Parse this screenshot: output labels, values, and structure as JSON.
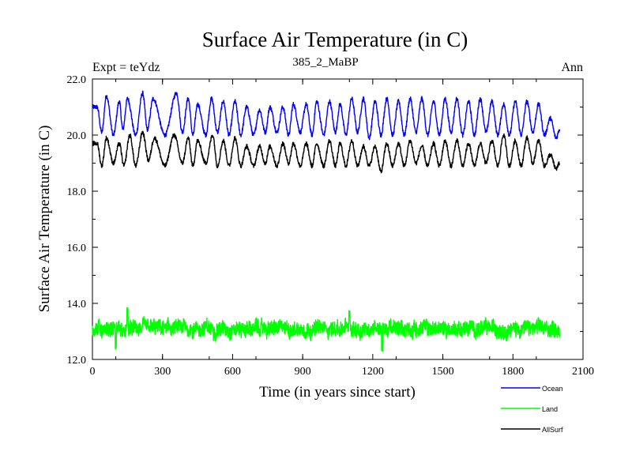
{
  "chart_data": {
    "type": "line",
    "title": "Surface Air Temperature (in C)",
    "subtitle_left": "Expt = teYdz",
    "subtitle_center": "385_2_MaBP",
    "subtitle_right": "Ann",
    "xlabel": "Time (in years since start)",
    "ylabel": "Surface Air Temperature (in C)",
    "xlim": [
      0,
      2100
    ],
    "ylim": [
      12.0,
      22.0
    ],
    "x_ticks": [
      0,
      300,
      600,
      900,
      1200,
      1500,
      1800,
      2100
    ],
    "x_tick_labels": [
      "0",
      "300",
      "600",
      "900",
      "1200",
      "1500",
      "1800",
      "2100"
    ],
    "y_ticks": [
      12.0,
      14.0,
      16.0,
      18.0,
      20.0,
      22.0
    ],
    "y_tick_labels": [
      "12.0",
      "14.0",
      "16.0",
      "18.0",
      "20.0",
      "22.0"
    ],
    "legend_position": "bottom-right, outside plot",
    "series": [
      {
        "name": "Ocean",
        "color": "#0000ff",
        "x_range": [
          0,
          2000
        ],
        "period_years": 100,
        "peaks": [
          [
            20,
            21.0
          ],
          [
            60,
            21.4
          ],
          [
            115,
            21.2
          ],
          [
            150,
            21.3
          ],
          [
            215,
            21.5
          ],
          [
            260,
            21.3
          ],
          [
            360,
            21.5
          ],
          [
            410,
            21.3
          ],
          [
            450,
            21.1
          ],
          [
            510,
            21.3
          ],
          [
            560,
            21.2
          ],
          [
            610,
            21.2
          ],
          [
            660,
            21.0
          ],
          [
            715,
            20.9
          ],
          [
            760,
            21.0
          ],
          [
            815,
            21.0
          ],
          [
            860,
            21.1
          ],
          [
            915,
            21.1
          ],
          [
            960,
            21.2
          ],
          [
            1015,
            21.2
          ],
          [
            1060,
            21.1
          ],
          [
            1110,
            21.3
          ],
          [
            1160,
            21.3
          ],
          [
            1210,
            21.2
          ],
          [
            1260,
            21.3
          ],
          [
            1310,
            21.2
          ],
          [
            1360,
            21.3
          ],
          [
            1410,
            21.3
          ],
          [
            1460,
            21.2
          ],
          [
            1510,
            21.3
          ],
          [
            1560,
            21.3
          ],
          [
            1610,
            21.2
          ],
          [
            1660,
            21.3
          ],
          [
            1710,
            21.2
          ],
          [
            1760,
            21.1
          ],
          [
            1810,
            21.2
          ],
          [
            1860,
            21.2
          ],
          [
            1910,
            21.1
          ],
          [
            1960,
            20.6
          ]
        ],
        "troughs": [
          [
            40,
            20.1
          ],
          [
            90,
            20.0
          ],
          [
            130,
            20.2
          ],
          [
            185,
            20.0
          ],
          [
            235,
            20.2
          ],
          [
            310,
            20.0
          ],
          [
            385,
            20.1
          ],
          [
            430,
            20.0
          ],
          [
            485,
            20.0
          ],
          [
            535,
            20.1
          ],
          [
            585,
            20.0
          ],
          [
            635,
            20.0
          ],
          [
            690,
            20.0
          ],
          [
            740,
            20.1
          ],
          [
            790,
            20.1
          ],
          [
            840,
            20.0
          ],
          [
            890,
            20.1
          ],
          [
            940,
            20.0
          ],
          [
            990,
            20.0
          ],
          [
            1040,
            20.1
          ],
          [
            1085,
            20.0
          ],
          [
            1135,
            20.1
          ],
          [
            1185,
            19.9
          ],
          [
            1235,
            20.0
          ],
          [
            1285,
            20.0
          ],
          [
            1335,
            20.0
          ],
          [
            1385,
            20.1
          ],
          [
            1435,
            20.0
          ],
          [
            1485,
            20.0
          ],
          [
            1535,
            20.1
          ],
          [
            1585,
            20.0
          ],
          [
            1635,
            20.0
          ],
          [
            1685,
            20.1
          ],
          [
            1735,
            20.0
          ],
          [
            1785,
            20.0
          ],
          [
            1835,
            20.0
          ],
          [
            1885,
            20.1
          ],
          [
            1935,
            20.0
          ],
          [
            1985,
            19.9
          ]
        ],
        "start_value": 21.0,
        "end_value": 20.2
      },
      {
        "name": "Land",
        "color": "#00ff00",
        "x_range": [
          0,
          2000
        ],
        "mean": 13.1,
        "typical_min": 12.5,
        "typical_max": 13.6,
        "extremes": [
          [
            100,
            12.4
          ],
          [
            150,
            13.8
          ],
          [
            1240,
            12.3
          ],
          [
            1100,
            13.7
          ]
        ],
        "start_value": 13.2,
        "end_value": 12.9
      },
      {
        "name": "AllSurf",
        "color": "#000000",
        "x_range": [
          0,
          2000
        ],
        "period_years": 100,
        "peaks": [
          [
            20,
            19.7
          ],
          [
            60,
            19.9
          ],
          [
            115,
            19.7
          ],
          [
            160,
            20.0
          ],
          [
            215,
            20.1
          ],
          [
            265,
            19.9
          ],
          [
            350,
            20.0
          ],
          [
            410,
            19.9
          ],
          [
            450,
            19.8
          ],
          [
            515,
            20.0
          ],
          [
            560,
            19.8
          ],
          [
            610,
            19.9
          ],
          [
            660,
            19.6
          ],
          [
            715,
            19.6
          ],
          [
            760,
            19.6
          ],
          [
            815,
            19.7
          ],
          [
            860,
            19.7
          ],
          [
            915,
            19.7
          ],
          [
            960,
            19.7
          ],
          [
            1015,
            19.8
          ],
          [
            1060,
            19.7
          ],
          [
            1110,
            19.8
          ],
          [
            1160,
            19.6
          ],
          [
            1210,
            19.6
          ],
          [
            1260,
            19.7
          ],
          [
            1310,
            19.7
          ],
          [
            1360,
            19.8
          ],
          [
            1410,
            19.6
          ],
          [
            1460,
            19.7
          ],
          [
            1510,
            19.8
          ],
          [
            1560,
            19.8
          ],
          [
            1610,
            19.7
          ],
          [
            1660,
            19.7
          ],
          [
            1710,
            19.8
          ],
          [
            1760,
            20.0
          ],
          [
            1810,
            19.8
          ],
          [
            1860,
            19.9
          ],
          [
            1910,
            19.8
          ],
          [
            1960,
            19.3
          ]
        ],
        "troughs": [
          [
            40,
            18.9
          ],
          [
            90,
            19.0
          ],
          [
            135,
            18.9
          ],
          [
            185,
            18.9
          ],
          [
            240,
            19.1
          ],
          [
            310,
            18.9
          ],
          [
            385,
            19.0
          ],
          [
            430,
            18.9
          ],
          [
            485,
            19.0
          ],
          [
            535,
            18.9
          ],
          [
            585,
            18.9
          ],
          [
            635,
            18.9
          ],
          [
            690,
            18.9
          ],
          [
            740,
            19.0
          ],
          [
            790,
            18.9
          ],
          [
            840,
            19.0
          ],
          [
            890,
            18.9
          ],
          [
            940,
            18.9
          ],
          [
            990,
            18.9
          ],
          [
            1040,
            18.9
          ],
          [
            1085,
            18.9
          ],
          [
            1135,
            18.9
          ],
          [
            1185,
            18.9
          ],
          [
            1235,
            18.7
          ],
          [
            1285,
            18.9
          ],
          [
            1335,
            18.9
          ],
          [
            1385,
            19.0
          ],
          [
            1435,
            18.9
          ],
          [
            1485,
            18.9
          ],
          [
            1535,
            18.9
          ],
          [
            1585,
            18.9
          ],
          [
            1635,
            18.9
          ],
          [
            1685,
            19.0
          ],
          [
            1735,
            18.9
          ],
          [
            1785,
            18.9
          ],
          [
            1835,
            18.9
          ],
          [
            1885,
            19.0
          ],
          [
            1935,
            18.9
          ],
          [
            1985,
            18.8
          ]
        ],
        "start_value": 19.7,
        "end_value": 19.0
      }
    ]
  }
}
